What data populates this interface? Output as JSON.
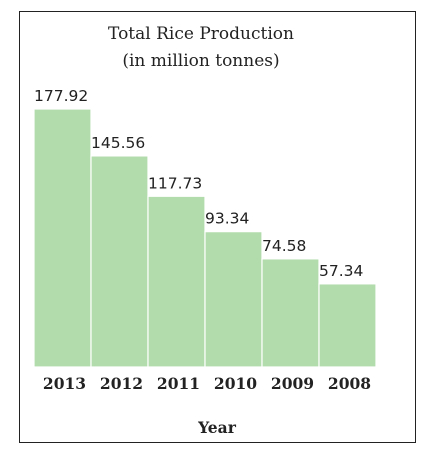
{
  "chart_data": {
    "type": "bar",
    "title": "Total Rice Production",
    "subtitle": "(in million tonnes)",
    "xlabel": "Year",
    "ylabel": "",
    "categories": [
      "2013",
      "2012",
      "2011",
      "2010",
      "2009",
      "2008"
    ],
    "values": [
      177.92,
      145.56,
      117.73,
      93.34,
      74.58,
      57.34
    ],
    "ylim": [
      0,
      177.92
    ],
    "grid": false,
    "legend": "none",
    "colors": {
      "bar": "#b2dcac",
      "bar_edge": "#ffffff",
      "text": "#222222"
    }
  }
}
